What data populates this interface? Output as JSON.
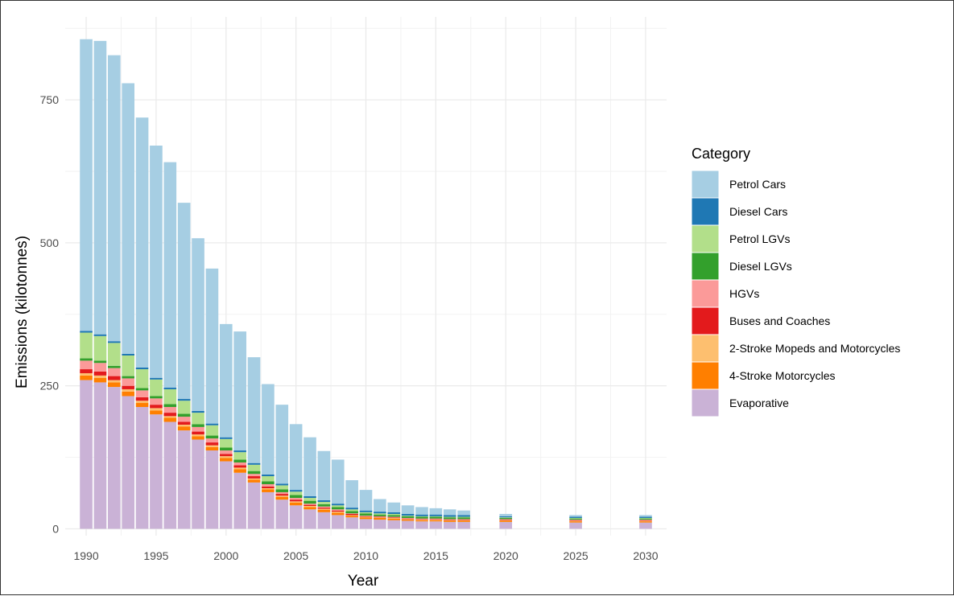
{
  "chart_data": {
    "type": "bar",
    "stacked": true,
    "xlabel": "Year",
    "ylabel": "Emissions (kilotonnes)",
    "x_ticks": [
      1990,
      1995,
      2000,
      2005,
      2010,
      2015,
      2020,
      2025,
      2030
    ],
    "y_ticks": [
      0,
      250,
      500,
      750
    ],
    "xlim": [
      1988.5,
      2031.5
    ],
    "ylim": [
      -12,
      895
    ],
    "grid": true,
    "legend": {
      "title": "Category",
      "position": "right"
    },
    "categories": [
      1990,
      1991,
      1992,
      1993,
      1994,
      1995,
      1996,
      1997,
      1998,
      1999,
      2000,
      2001,
      2002,
      2003,
      2004,
      2005,
      2006,
      2007,
      2008,
      2009,
      2010,
      2011,
      2012,
      2013,
      2014,
      2015,
      2016,
      2017,
      2020,
      2025,
      2030
    ],
    "series": [
      {
        "name": "Evaporative",
        "color": "#cab2d6",
        "values": [
          260,
          256,
          248,
          232,
          213,
          200,
          187,
          172,
          156,
          137,
          118,
          98,
          81,
          64,
          51,
          41,
          34,
          29,
          24,
          20,
          17,
          16,
          15,
          14,
          13,
          13,
          12,
          12,
          12,
          11,
          11
        ]
      },
      {
        "name": "4-Stroke Motorcycles",
        "color": "#ff7f00",
        "values": [
          8,
          8,
          8,
          8,
          7,
          7,
          7,
          7,
          6,
          6,
          6,
          6,
          5,
          5,
          5,
          5,
          4,
          4,
          4,
          3,
          3,
          3,
          3,
          2,
          2,
          2,
          2,
          2,
          2,
          2,
          2
        ]
      },
      {
        "name": "2-Stroke Mopeds and Motorcycles",
        "color": "#fdbf6f",
        "values": [
          4,
          4,
          4,
          4,
          4,
          4,
          3,
          3,
          3,
          3,
          3,
          3,
          2,
          2,
          2,
          2,
          2,
          2,
          2,
          1,
          1,
          1,
          1,
          1,
          1,
          1,
          1,
          1,
          1,
          1,
          1
        ]
      },
      {
        "name": "Buses and Coaches",
        "color": "#e31a1c",
        "values": [
          7,
          7,
          7,
          6,
          6,
          6,
          6,
          5,
          5,
          5,
          4,
          4,
          4,
          3,
          3,
          3,
          2,
          2,
          2,
          2,
          1,
          1,
          1,
          1,
          1,
          1,
          1,
          1,
          1,
          1,
          1
        ]
      },
      {
        "name": "HGVs",
        "color": "#fb9a99",
        "values": [
          15,
          15,
          14,
          13,
          12,
          11,
          10,
          9,
          8,
          7,
          6,
          5,
          4,
          4,
          3,
          3,
          2,
          2,
          2,
          1,
          1,
          1,
          1,
          1,
          1,
          1,
          1,
          1,
          1,
          1,
          1
        ]
      },
      {
        "name": "Diesel LGVs",
        "color": "#33a02c",
        "values": [
          4,
          4,
          4,
          4,
          4,
          4,
          5,
          5,
          5,
          5,
          5,
          5,
          5,
          5,
          5,
          5,
          5,
          4,
          4,
          4,
          4,
          3,
          3,
          3,
          3,
          3,
          3,
          3,
          2,
          2,
          2
        ]
      },
      {
        "name": "Petrol LGVs",
        "color": "#b2df8a",
        "values": [
          45,
          43,
          40,
          36,
          33,
          29,
          26,
          23,
          20,
          18,
          15,
          13,
          11,
          9,
          7,
          6,
          5,
          4,
          3,
          3,
          2,
          2,
          2,
          1,
          1,
          1,
          1,
          1,
          1,
          1,
          1
        ]
      },
      {
        "name": "Diesel Cars",
        "color": "#1f78b4",
        "values": [
          3,
          3,
          3,
          3,
          3,
          3,
          3,
          3,
          3,
          3,
          3,
          3,
          3,
          3,
          3,
          3,
          3,
          3,
          3,
          3,
          3,
          3,
          3,
          3,
          3,
          3,
          3,
          3,
          2,
          2,
          2
        ]
      },
      {
        "name": "Petrol Cars",
        "color": "#a6cee3",
        "values": [
          510,
          513,
          500,
          473,
          437,
          406,
          394,
          343,
          302,
          271,
          198,
          208,
          185,
          158,
          138,
          115,
          103,
          86,
          77,
          48,
          36,
          22,
          17,
          15,
          13,
          11,
          10,
          8,
          4,
          3,
          3
        ]
      }
    ]
  },
  "legend_order": [
    "Petrol Cars",
    "Diesel Cars",
    "Petrol LGVs",
    "Diesel LGVs",
    "HGVs",
    "Buses and Coaches",
    "2-Stroke Mopeds and Motorcycles",
    "4-Stroke Motorcycles",
    "Evaporative"
  ]
}
